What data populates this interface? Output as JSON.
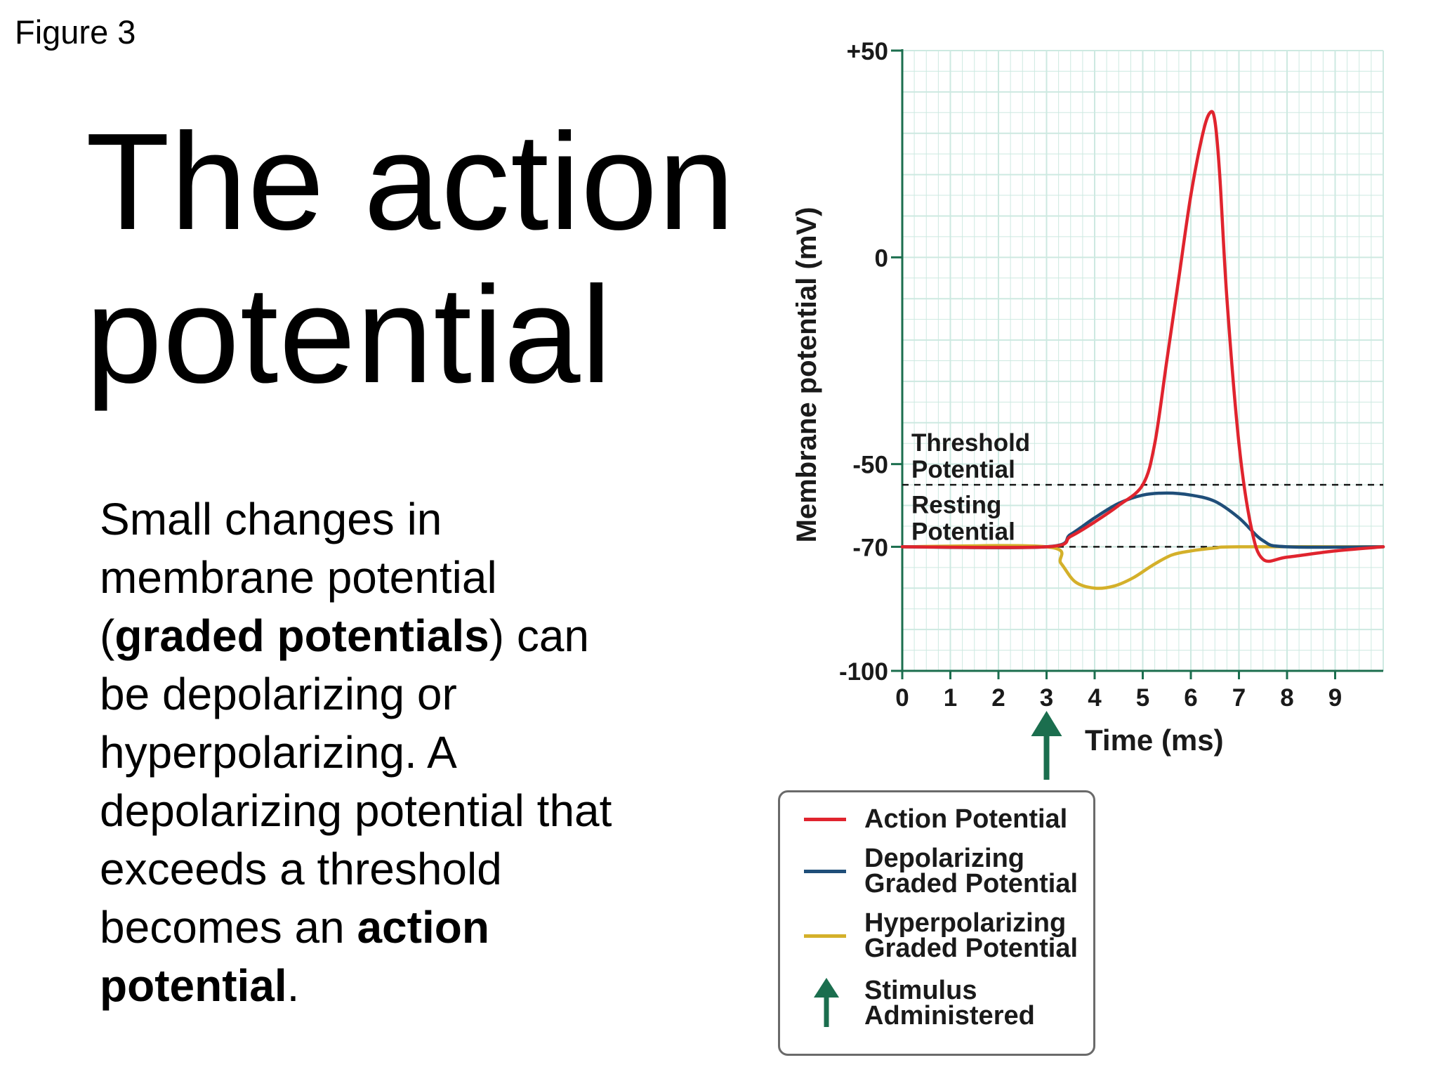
{
  "figure_label": "Figure 3",
  "title_lines": [
    "The action",
    "potential"
  ],
  "body_lines": [
    [
      {
        "t": "Small changes in",
        "b": false
      }
    ],
    [
      {
        "t": "membrane potential",
        "b": false
      }
    ],
    [
      {
        "t": "(",
        "b": false
      },
      {
        "t": "graded potentials",
        "b": true
      },
      {
        "t": ") can",
        "b": false
      }
    ],
    [
      {
        "t": "be depolarizing or",
        "b": false
      }
    ],
    [
      {
        "t": "hyperpolarizing. A",
        "b": false
      }
    ],
    [
      {
        "t": "depolarizing potential that",
        "b": false
      }
    ],
    [
      {
        "t": "exceeds a threshold",
        "b": false
      }
    ],
    [
      {
        "t": "becomes an ",
        "b": false
      },
      {
        "t": "action",
        "b": true
      }
    ],
    [
      {
        "t": "potential",
        "b": true
      },
      {
        "t": ".",
        "b": false
      }
    ]
  ],
  "colors": {
    "action": "#e0242e",
    "depolarizing": "#1f4e79",
    "hyperpolarizing": "#d4b02a",
    "stimulus": "#1b6e4e",
    "grid": "#cde9e1",
    "axis": "#1b6e4e"
  },
  "chart_data": {
    "type": "line",
    "xlabel": "Time (ms)",
    "ylabel": "Membrane potential (mV)",
    "xlim": [
      0,
      10
    ],
    "ylim": [
      -100,
      50
    ],
    "xticks": [
      0,
      1,
      2,
      3,
      4,
      5,
      6,
      7,
      8,
      9
    ],
    "yticks": [
      50,
      0,
      -50,
      -70,
      -100
    ],
    "ytick_labels": [
      "+50",
      "0",
      "-50",
      "-70",
      "-100"
    ],
    "grid": true,
    "reference_lines": [
      {
        "y": -55,
        "style": "dashed",
        "label": [
          "Threshold",
          "Potential"
        ]
      },
      {
        "y": -70,
        "style": "dashed",
        "label": [
          "Resting",
          "Potential"
        ]
      }
    ],
    "stimulus": {
      "x": 3,
      "label": [
        "Stimulus",
        "Administered"
      ]
    },
    "series": [
      {
        "name": "Action Potential",
        "color_key": "action",
        "x": [
          0,
          3,
          3.5,
          4,
          4.5,
          5,
          5.25,
          5.5,
          5.75,
          6,
          6.25,
          6.4,
          6.5,
          6.6,
          6.75,
          7,
          7.25,
          7.5,
          8,
          9,
          10
        ],
        "y": [
          -70,
          -70,
          -67.5,
          -64,
          -60,
          -55,
          -45,
          -25,
          -5,
          15,
          30,
          35,
          33,
          20,
          -10,
          -45,
          -65,
          -73,
          -72.5,
          -71,
          -70
        ]
      },
      {
        "name": "Depolarizing Graded Potential",
        "color_key": "depolarizing",
        "x": [
          0,
          3,
          3.5,
          4,
          4.5,
          5,
          5.5,
          6,
          6.5,
          7,
          7.5,
          8,
          10
        ],
        "y": [
          -70,
          -70,
          -67,
          -63,
          -59.5,
          -57.5,
          -57,
          -57.5,
          -59,
          -63,
          -68.5,
          -70,
          -70
        ]
      },
      {
        "name": "Hyperpolarizing Graded Potential",
        "color_key": "hyperpolarizing",
        "x": [
          0,
          3,
          3.3,
          3.6,
          4,
          4.4,
          4.8,
          5.2,
          5.6,
          6,
          6.5,
          7,
          10
        ],
        "y": [
          -70,
          -70,
          -74,
          -78.5,
          -80,
          -79.5,
          -77.5,
          -74.5,
          -72,
          -71,
          -70.3,
          -70,
          -70
        ]
      }
    ]
  },
  "legend": {
    "items": [
      {
        "key": "action",
        "lines": [
          "Action Potential"
        ]
      },
      {
        "key": "depolarizing",
        "lines": [
          "Depolarizing",
          "Graded Potential"
        ]
      },
      {
        "key": "hyperpolarizing",
        "lines": [
          "Hyperpolarizing",
          "Graded Potential"
        ]
      },
      {
        "key": "stimulus",
        "lines": [
          "Stimulus",
          "Administered"
        ]
      }
    ]
  }
}
